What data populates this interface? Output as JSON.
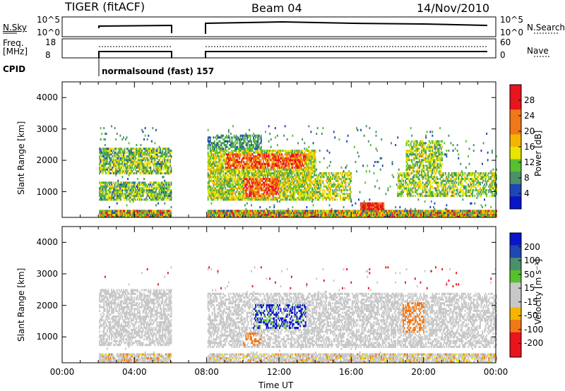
{
  "header": {
    "radar": "TIGER (fitACF)",
    "beam": "Beam 04",
    "date": "14/Nov/2010"
  },
  "sky_panel": {
    "left_label": "N.Sky",
    "left_ticks": [
      "10^5",
      "10^0"
    ],
    "right_ticks": [
      "10^5",
      "10^0"
    ],
    "right_label": "N.Search"
  },
  "freq_panel": {
    "left_label_line1": "Freq.",
    "left_label_line2": "[MHz]",
    "left_ticks": [
      "18",
      "8"
    ],
    "right_ticks": [
      "60",
      "0"
    ],
    "right_label": "Nave"
  },
  "cpid": {
    "label": "CPID",
    "program": "normalsound (fast) 157"
  },
  "colors": {
    "red": "#e8141e",
    "orange": "#f07818",
    "yellow_orange": "#f5b400",
    "yellow": "#e6e600",
    "green": "#58c030",
    "teal": "#4a9068",
    "blue": "#1e46b4",
    "dark_blue": "#0a14c8",
    "grey": "#c8c8c8"
  },
  "chart_data": [
    {
      "type": "heatmap",
      "name": "power",
      "ylabel": "Slant Range [km]",
      "y_ticks": [
        "4000",
        "3000",
        "2000",
        "1000"
      ],
      "ylim": [
        180,
        4500
      ],
      "xlim": [
        0,
        24
      ],
      "data_intervals_ut": [
        [
          2,
          6
        ],
        [
          8,
          24
        ]
      ],
      "colorbar": {
        "label": "Power [dB]",
        "ticks": [
          "28",
          "24",
          "20",
          "16",
          "12",
          "8",
          "4"
        ],
        "range": [
          0,
          32
        ]
      }
    },
    {
      "type": "heatmap",
      "name": "velocity",
      "ylabel": "Slant Range [km]",
      "y_ticks": [
        "4000",
        "3000",
        "2000",
        "1000"
      ],
      "ylim": [
        180,
        4500
      ],
      "xlim": [
        0,
        24
      ],
      "data_intervals_ut": [
        [
          2,
          6
        ],
        [
          8,
          24
        ]
      ],
      "colorbar": {
        "label": "Velocity [m s⁻¹]",
        "ticks": [
          "200",
          "100",
          "50",
          "15",
          "-15",
          "-50",
          "-100",
          "-200"
        ]
      }
    }
  ],
  "xaxis": {
    "label": "Time UT",
    "ticks": [
      "00:00",
      "04:00",
      "08:00",
      "12:00",
      "16:00",
      "20:00",
      "00:00"
    ]
  }
}
